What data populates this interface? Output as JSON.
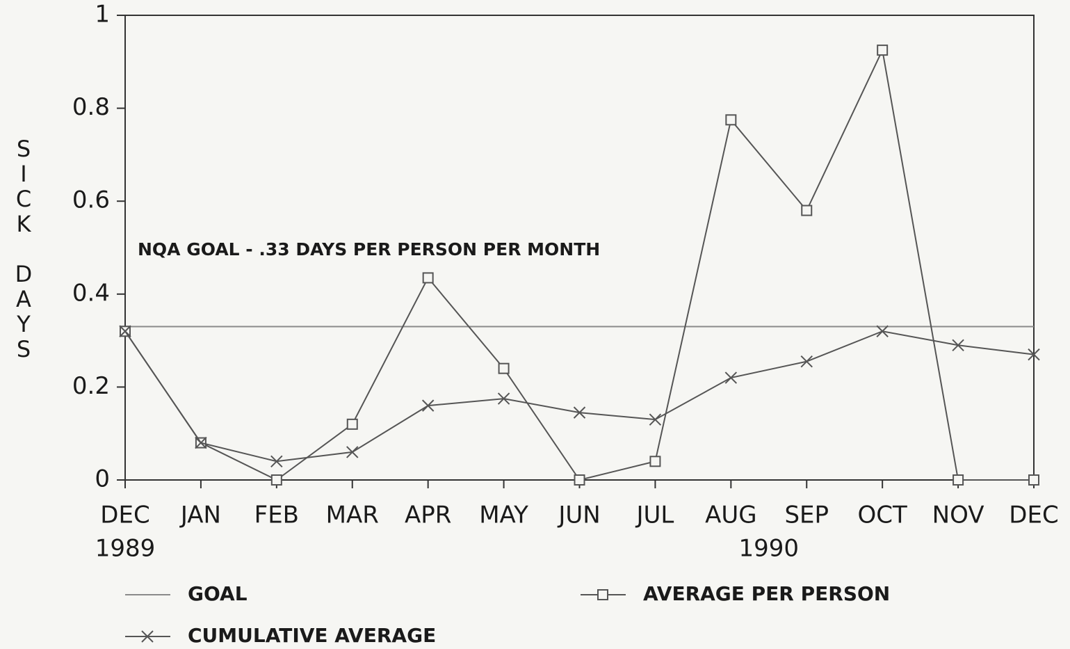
{
  "chart_data": {
    "type": "line",
    "y_label": "SICK DAYS",
    "annotation": "NQA GOAL - .33 DAYS PER PERSON PER MONTH",
    "categories": [
      "DEC",
      "JAN",
      "FEB",
      "MAR",
      "APR",
      "MAY",
      "JUN",
      "JUL",
      "AUG",
      "SEP",
      "OCT",
      "NOV",
      "DEC"
    ],
    "year_labels": [
      "1989",
      "1990"
    ],
    "ylim": [
      0,
      1
    ],
    "yticks": [
      0,
      0.2,
      0.4,
      0.6,
      0.8,
      1
    ],
    "grid": false,
    "series": [
      {
        "name": "GOAL",
        "color": "#8a8a8a",
        "marker": "none",
        "values": [
          0.33,
          0.33,
          0.33,
          0.33,
          0.33,
          0.33,
          0.33,
          0.33,
          0.33,
          0.33,
          0.33,
          0.33,
          0.33
        ]
      },
      {
        "name": "AVERAGE PER PERSON",
        "color": "#555555",
        "marker": "square",
        "values": [
          0.32,
          0.08,
          0.0,
          0.12,
          0.435,
          0.24,
          0.0,
          0.04,
          0.775,
          0.58,
          0.925,
          0.0,
          0.0
        ]
      },
      {
        "name": "CUMULATIVE AVERAGE",
        "color": "#555555",
        "marker": "x",
        "values": [
          0.32,
          0.08,
          0.04,
          0.06,
          0.16,
          0.175,
          0.145,
          0.13,
          0.22,
          0.255,
          0.32,
          0.29,
          0.27
        ]
      }
    ]
  }
}
